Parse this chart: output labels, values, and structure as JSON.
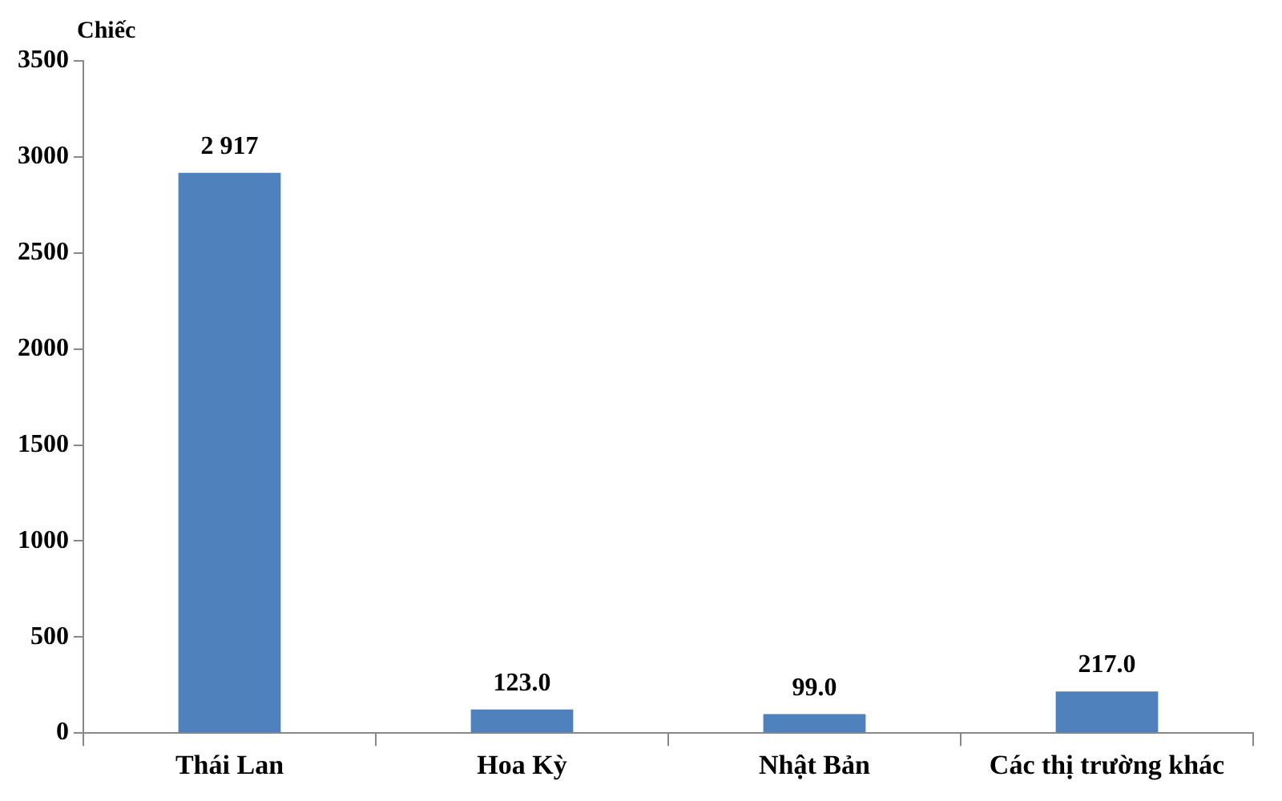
{
  "chart_data": {
    "type": "bar",
    "ylabel": "Chiếc",
    "categories": [
      "Thái Lan",
      "Hoa Kỳ",
      "Nhật Bản",
      "Các thị trường khác"
    ],
    "values": [
      2917,
      123,
      99,
      217
    ],
    "value_labels": [
      "2 917",
      "123.0",
      "99.0",
      "217.0"
    ],
    "color": "#4f81bd",
    "ylim": [
      0,
      3500
    ],
    "yticks": [
      0,
      500,
      1000,
      1500,
      2000,
      2500,
      3000,
      3500
    ],
    "grid": false,
    "legend": false
  }
}
